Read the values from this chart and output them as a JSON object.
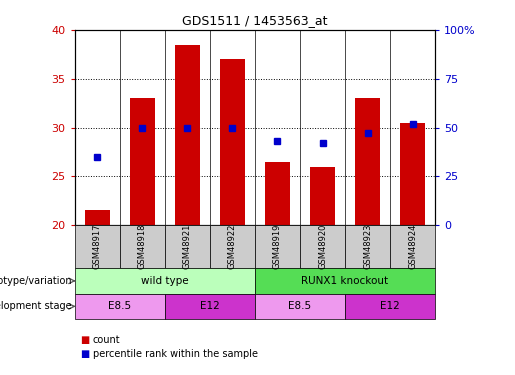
{
  "title": "GDS1511 / 1453563_at",
  "samples": [
    "GSM48917",
    "GSM48918",
    "GSM48921",
    "GSM48922",
    "GSM48919",
    "GSM48920",
    "GSM48923",
    "GSM48924"
  ],
  "counts": [
    21.5,
    33.0,
    38.5,
    37.0,
    26.5,
    26.0,
    33.0,
    30.5
  ],
  "percentiles": [
    35.0,
    50.0,
    50.0,
    50.0,
    43.0,
    42.0,
    47.0,
    52.0
  ],
  "ylim_left": [
    20,
    40
  ],
  "ylim_right": [
    0,
    100
  ],
  "yticks_left": [
    20,
    25,
    30,
    35,
    40
  ],
  "yticks_right": [
    0,
    25,
    50,
    75,
    100
  ],
  "ytick_labels_right": [
    "0",
    "25",
    "50",
    "75",
    "100%"
  ],
  "bar_color": "#cc0000",
  "dot_color": "#0000cc",
  "bar_width": 0.55,
  "bar_bottom": 20,
  "groups": [
    {
      "label": "wild type",
      "start": 0,
      "end": 4,
      "color": "#bbffbb"
    },
    {
      "label": "RUNX1 knockout",
      "start": 4,
      "end": 8,
      "color": "#55dd55"
    }
  ],
  "stages": [
    {
      "label": "E8.5",
      "start": 0,
      "end": 2,
      "color": "#ee99ee"
    },
    {
      "label": "E12",
      "start": 2,
      "end": 4,
      "color": "#cc33cc"
    },
    {
      "label": "E8.5",
      "start": 4,
      "end": 6,
      "color": "#ee99ee"
    },
    {
      "label": "E12",
      "start": 6,
      "end": 8,
      "color": "#cc33cc"
    }
  ],
  "legend_count_label": "count",
  "legend_percentile_label": "percentile rank within the sample",
  "genotype_label": "genotype/variation",
  "stage_label": "development stage",
  "background_color": "#ffffff",
  "tick_color_left": "#cc0000",
  "tick_color_right": "#0000cc",
  "sample_box_color": "#cccccc"
}
